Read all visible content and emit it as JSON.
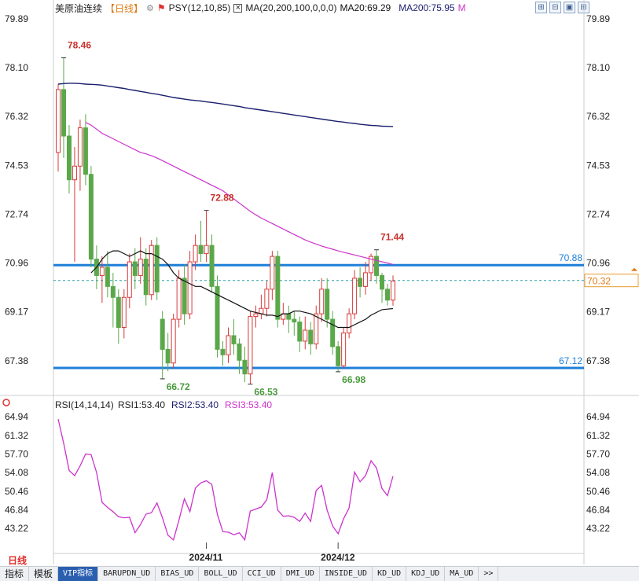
{
  "header": {
    "symbol": "美原油连续",
    "period": "【日线】",
    "psy": "PSY(12,10,85)",
    "ma": "MA(20,200,100,0,0,0)",
    "ma20": "MA20:69.29",
    "ma200": "MA200:75.95",
    "m": "M"
  },
  "rsi_header": {
    "name": "RSI(14,14,14)",
    "rsi1": "RSI1:53.40",
    "rsi2": "RSI2:53.40",
    "rsi3": "RSI3:53.40"
  },
  "timeframe": "日线",
  "tabs": [
    "指标",
    "模板",
    "VIP指标",
    "BARUPDN_UD",
    "BIAS_UD",
    "BOLL_UD",
    "CCI_UD",
    "DMI_UD",
    "INSIDE_UD",
    "KD_UD",
    "KDJ_UD",
    "MA_UD",
    ">>"
  ],
  "colors": {
    "up": "#d9383a",
    "down": "#5aa84a",
    "ma20": "#111111",
    "ma200": "#1b1f6e",
    "ma100": "#cc33cc",
    "support": "#1e7fd8",
    "rsi": "#cc33cc"
  },
  "chart_data": [
    {
      "type": "candlestick",
      "y_ticks": [
        "79.89",
        "78.10",
        "76.32",
        "74.53",
        "72.74",
        "70.96",
        "69.17",
        "67.38"
      ],
      "ylim": [
        66.2,
        80.0
      ],
      "x_labels": [
        {
          "label": "2024/11",
          "index": 27
        },
        {
          "label": "2024/12",
          "index": 51
        }
      ],
      "annotations": [
        {
          "text": "78.46",
          "index": 1,
          "value": 78.46,
          "kind": "high"
        },
        {
          "text": "72.88",
          "index": 27,
          "value": 72.88,
          "kind": "high"
        },
        {
          "text": "71.44",
          "index": 58,
          "value": 71.44,
          "kind": "high"
        },
        {
          "text": "66.72",
          "index": 19,
          "value": 66.72,
          "kind": "low"
        },
        {
          "text": "66.53",
          "index": 35,
          "value": 66.53,
          "kind": "low"
        },
        {
          "text": "66.98",
          "index": 51,
          "value": 66.98,
          "kind": "low"
        }
      ],
      "levels": [
        {
          "label": "70.88",
          "value": 70.88
        },
        {
          "label": "67.12",
          "value": 67.12
        }
      ],
      "last_price": {
        "label": "70.32",
        "value": 70.32
      },
      "candles": [
        [
          75.0,
          77.3,
          77.5,
          74.3
        ],
        [
          77.3,
          75.6,
          78.46,
          74.8
        ],
        [
          75.6,
          74.0,
          76.0,
          73.5
        ],
        [
          74.0,
          74.5,
          75.2,
          71.0
        ],
        [
          74.5,
          75.9,
          76.2,
          73.6
        ],
        [
          75.9,
          74.2,
          76.4,
          73.8
        ],
        [
          74.2,
          71.1,
          74.5,
          70.8
        ],
        [
          71.1,
          70.5,
          71.6,
          70.0
        ],
        [
          70.5,
          70.8,
          71.2,
          69.5
        ],
        [
          70.8,
          70.1,
          71.4,
          69.7
        ],
        [
          70.1,
          69.7,
          70.6,
          68.6
        ],
        [
          69.7,
          68.6,
          70.0,
          68.0
        ],
        [
          68.6,
          69.7,
          70.0,
          68.2
        ],
        [
          69.7,
          71.0,
          71.3,
          69.3
        ],
        [
          71.0,
          70.5,
          71.5,
          70.0
        ],
        [
          70.5,
          71.1,
          71.9,
          70.2
        ],
        [
          71.1,
          69.8,
          71.5,
          69.4
        ],
        [
          69.8,
          71.6,
          71.8,
          69.6
        ],
        [
          71.6,
          69.9,
          71.9,
          69.6
        ],
        [
          68.9,
          67.8,
          69.2,
          66.72
        ],
        [
          67.8,
          67.3,
          68.4,
          67.0
        ],
        [
          67.3,
          68.9,
          69.1,
          67.1
        ],
        [
          68.9,
          70.4,
          70.7,
          68.6
        ],
        [
          70.4,
          69.1,
          70.9,
          68.7
        ],
        [
          69.1,
          71.0,
          71.4,
          68.9
        ],
        [
          71.0,
          71.6,
          72.0,
          70.7
        ],
        [
          71.6,
          71.3,
          72.5,
          71.0
        ],
        [
          71.3,
          71.6,
          72.88,
          71.0
        ],
        [
          71.6,
          70.1,
          72.0,
          69.9
        ],
        [
          70.1,
          67.8,
          70.5,
          67.5
        ],
        [
          67.8,
          67.6,
          68.1,
          67.2
        ],
        [
          67.6,
          68.3,
          68.6,
          67.3
        ],
        [
          68.3,
          68.0,
          68.9,
          67.6
        ],
        [
          68.0,
          67.4,
          68.2,
          66.9
        ],
        [
          67.4,
          66.9,
          67.9,
          66.6
        ],
        [
          66.9,
          69.0,
          69.2,
          66.53
        ],
        [
          69.0,
          69.1,
          69.4,
          68.6
        ],
        [
          69.1,
          69.3,
          69.8,
          68.9
        ],
        [
          69.3,
          70.0,
          70.3,
          69.0
        ],
        [
          70.0,
          71.2,
          71.4,
          69.6
        ],
        [
          71.2,
          68.9,
          71.4,
          68.6
        ],
        [
          68.9,
          69.1,
          69.5,
          68.7
        ],
        [
          69.1,
          68.9,
          69.4,
          68.4
        ],
        [
          68.9,
          68.8,
          69.2,
          68.3
        ],
        [
          68.8,
          68.1,
          69.0,
          67.7
        ],
        [
          68.1,
          68.5,
          69.0,
          67.8
        ],
        [
          68.5,
          68.0,
          68.8,
          67.6
        ],
        [
          68.0,
          69.1,
          69.4,
          67.8
        ],
        [
          69.1,
          70.0,
          70.4,
          68.8
        ],
        [
          70.0,
          68.9,
          70.4,
          68.6
        ],
        [
          68.9,
          67.9,
          69.2,
          67.6
        ],
        [
          67.9,
          67.2,
          68.1,
          66.98
        ],
        [
          67.2,
          68.4,
          68.6,
          67.1
        ],
        [
          68.4,
          69.1,
          69.3,
          68.2
        ],
        [
          69.1,
          70.4,
          70.7,
          68.9
        ],
        [
          70.4,
          70.1,
          70.8,
          69.7
        ],
        [
          70.1,
          70.6,
          71.0,
          69.8
        ],
        [
          70.6,
          71.2,
          71.3,
          70.3
        ],
        [
          71.2,
          70.5,
          71.44,
          70.2
        ],
        [
          70.5,
          70.0,
          70.6,
          69.5
        ],
        [
          70.0,
          69.6,
          70.2,
          69.4
        ],
        [
          69.6,
          70.3,
          70.5,
          69.4
        ]
      ],
      "ma20": [
        null,
        null,
        null,
        null,
        null,
        null,
        70.6,
        70.8,
        71.1,
        71.3,
        71.4,
        71.4,
        71.3,
        71.2,
        71.3,
        71.4,
        71.3,
        71.3,
        71.2,
        71.1,
        70.9,
        70.6,
        70.4,
        70.3,
        70.2,
        70.1,
        70.1,
        70.0,
        69.9,
        69.8,
        69.7,
        69.6,
        69.5,
        69.4,
        69.3,
        69.2,
        69.15,
        69.1,
        69.05,
        69.05,
        69.0,
        69.1,
        69.1,
        69.2,
        69.2,
        69.15,
        69.1,
        69.0,
        68.9,
        68.8,
        68.7,
        68.6,
        68.6,
        68.6,
        68.7,
        68.8,
        68.9,
        69.05,
        69.15,
        69.25,
        69.27,
        69.29
      ],
      "ma200": [
        77.5,
        77.52,
        77.53,
        77.53,
        77.52,
        77.5,
        77.49,
        77.48,
        77.46,
        77.43,
        77.4,
        77.37,
        77.34,
        77.3,
        77.27,
        77.23,
        77.2,
        77.16,
        77.13,
        77.09,
        77.05,
        77.01,
        76.98,
        76.95,
        76.92,
        76.9,
        76.88,
        76.85,
        76.83,
        76.8,
        76.77,
        76.74,
        76.71,
        76.68,
        76.64,
        76.61,
        76.58,
        76.55,
        76.52,
        76.49,
        76.46,
        76.43,
        76.4,
        76.37,
        76.34,
        76.31,
        76.28,
        76.25,
        76.22,
        76.19,
        76.16,
        76.13,
        76.11,
        76.08,
        76.06,
        76.03,
        76.01,
        75.99,
        75.98,
        75.96,
        75.955,
        75.95
      ],
      "ma100": [
        null,
        null,
        null,
        null,
        null,
        76.1,
        76.0,
        75.85,
        75.7,
        75.6,
        75.5,
        75.4,
        75.3,
        75.2,
        75.1,
        75.0,
        74.95,
        74.88,
        74.8,
        74.7,
        74.6,
        74.5,
        74.4,
        74.3,
        74.2,
        74.1,
        74.0,
        73.9,
        73.8,
        73.7,
        73.6,
        73.45,
        73.3,
        73.15,
        73.0,
        72.85,
        72.72,
        72.6,
        72.5,
        72.4,
        72.3,
        72.2,
        72.1,
        72.0,
        71.9,
        71.8,
        71.72,
        71.65,
        71.58,
        71.52,
        71.46,
        71.4,
        71.35,
        71.3,
        71.25,
        71.2,
        71.15,
        71.1,
        71.05,
        71.0,
        70.96,
        70.9
      ]
    },
    {
      "type": "line",
      "title": "RSI(14,14,14)",
      "y_ticks": [
        "64.94",
        "61.32",
        "57.70",
        "54.08",
        "50.46",
        "46.84",
        "43.22"
      ],
      "ylim": [
        40.5,
        66.5
      ],
      "series": [
        {
          "name": "RSI3",
          "values": [
            64.5,
            59.8,
            54.5,
            53.5,
            55.4,
            57.7,
            57.6,
            54.1,
            48.3,
            47.3,
            46.5,
            45.5,
            45.3,
            45.4,
            42.4,
            44.0,
            46.0,
            46.3,
            48.2,
            45.3,
            41.9,
            41.0,
            44.8,
            49.0,
            46.5,
            51.1,
            52.1,
            52.5,
            51.8,
            46.0,
            42.6,
            42.5,
            42.0,
            42.4,
            41.0,
            46.6,
            47.0,
            47.4,
            48.8,
            54.1,
            46.8,
            45.6,
            45.7,
            45.4,
            44.6,
            46.2,
            44.6,
            50.6,
            51.6,
            46.8,
            43.7,
            42.2,
            45.1,
            47.2,
            54.2,
            52.3,
            53.5,
            56.4,
            55.0,
            51.0,
            49.6,
            53.4
          ]
        }
      ]
    }
  ]
}
